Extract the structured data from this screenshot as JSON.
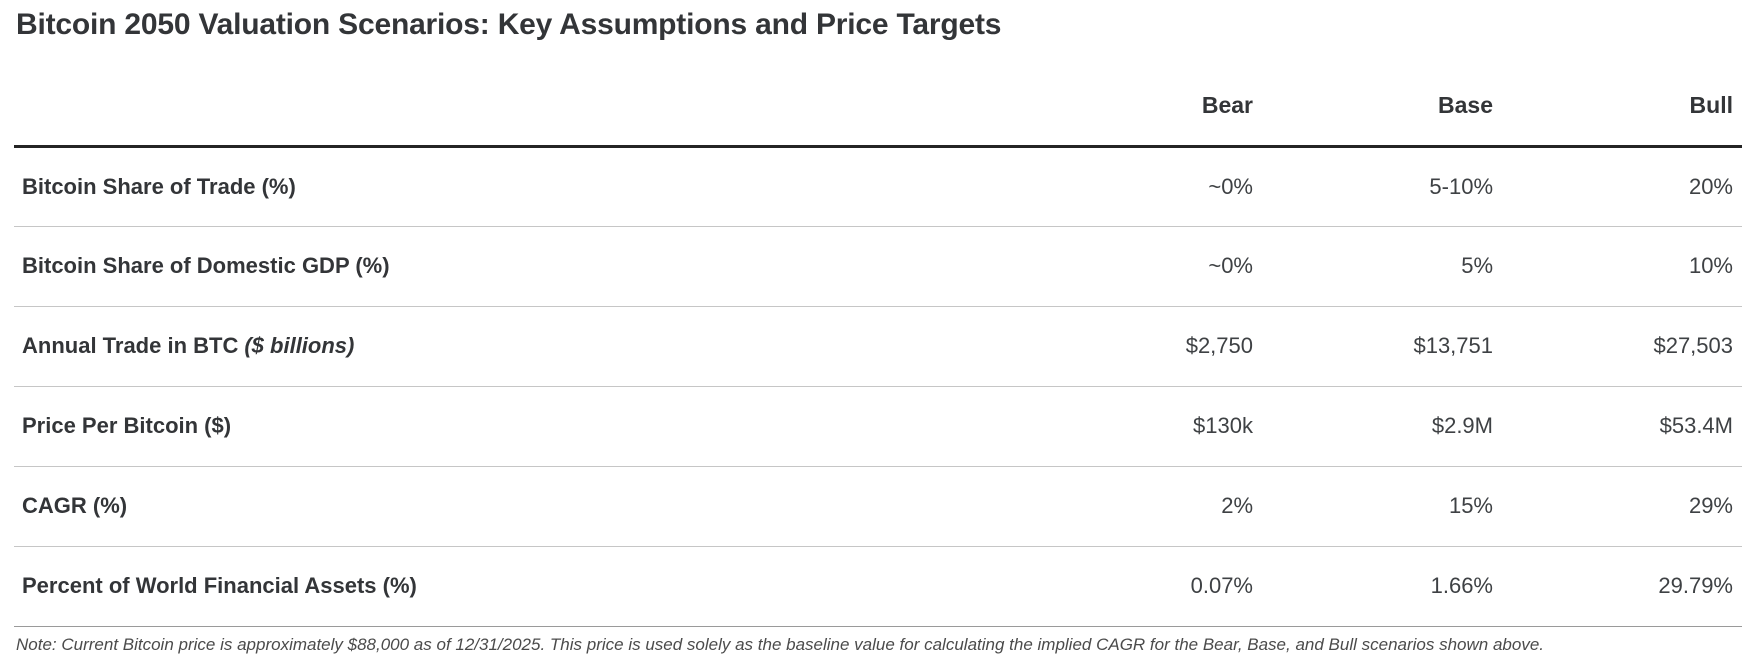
{
  "title": "Bitcoin 2050 Valuation Scenarios: Key Assumptions and Price Targets",
  "table": {
    "columns": [
      "Bear",
      "Base",
      "Bull"
    ],
    "rows": [
      {
        "label": "Bitcoin Share of Trade (%)",
        "label_italic": "",
        "values": [
          "~0%",
          "5-10%",
          "20%"
        ]
      },
      {
        "label": "Bitcoin Share of Domestic GDP (%)",
        "label_italic": "",
        "values": [
          "~0%",
          "5%",
          "10%"
        ]
      },
      {
        "label": "Annual Trade in BTC",
        "label_italic": "($ billions)",
        "values": [
          "$2,750",
          "$13,751",
          "$27,503"
        ]
      },
      {
        "label": "Price Per Bitcoin ($)",
        "label_italic": "",
        "values": [
          "$130k",
          "$2.9M",
          "$53.4M"
        ]
      },
      {
        "label": "CAGR (%)",
        "label_italic": "",
        "values": [
          "2%",
          "15%",
          "29%"
        ]
      },
      {
        "label": "Percent of World Financial Assets (%)",
        "label_italic": "",
        "values": [
          "0.07%",
          "1.66%",
          "29.79%"
        ]
      }
    ]
  },
  "note": "Note: Current Bitcoin price is approximately $88,000 as of 12/31/2025. This price is used solely as the baseline value for calculating the implied CAGR for the Bear, Base, and Bull scenarios shown above.",
  "colors": {
    "title_text": "#333538",
    "value_text": "#3e4144",
    "header_rule": "#242424",
    "row_rule": "#c6c6c6",
    "bottom_rule": "#9a9a9a",
    "note_text": "#4b4b4b"
  },
  "chart_data": {
    "type": "table",
    "title": "Bitcoin 2050 Valuation Scenarios: Key Assumptions and Price Targets",
    "columns": [
      "",
      "Bear",
      "Base",
      "Bull"
    ],
    "rows": [
      [
        "Bitcoin Share of Trade (%)",
        "~0%",
        "5-10%",
        "20%"
      ],
      [
        "Bitcoin Share of Domestic GDP (%)",
        "~0%",
        "5%",
        "10%"
      ],
      [
        "Annual Trade in BTC ($ billions)",
        "$2,750",
        "$13,751",
        "$27,503"
      ],
      [
        "Price Per Bitcoin ($)",
        "$130k",
        "$2.9M",
        "$53.4M"
      ],
      [
        "CAGR (%)",
        "2%",
        "15%",
        "29%"
      ],
      [
        "Percent of World Financial Assets (%)",
        "0.07%",
        "1.66%",
        "29.79%"
      ]
    ],
    "footnote": "Note: Current Bitcoin price is approximately $88,000 as of 12/31/2025. This price is used solely as the baseline value for calculating the implied CAGR for the Bear, Base, and Bull scenarios shown above."
  }
}
